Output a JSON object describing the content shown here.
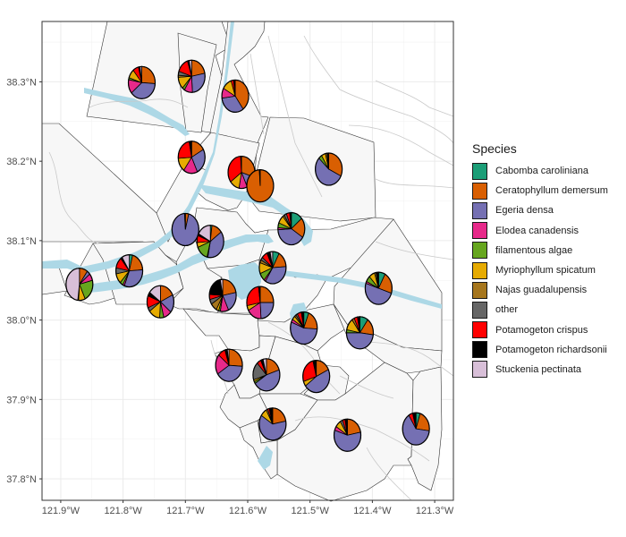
{
  "chart_data": {
    "type": "pie-map",
    "title": "",
    "xlabel": "",
    "ylabel": "",
    "xlim": [
      -121.93,
      -121.27
    ],
    "ylim": [
      37.773,
      38.376
    ],
    "x_ticks": [
      -121.9,
      -121.8,
      -121.7,
      -121.6,
      -121.5,
      -121.4,
      -121.3
    ],
    "x_tick_labels": [
      "121.9°W",
      "121.8°W",
      "121.7°W",
      "121.6°W",
      "121.5°W",
      "121.4°W",
      "121.3°W"
    ],
    "y_ticks": [
      37.8,
      37.9,
      38.0,
      38.1,
      38.2,
      38.3
    ],
    "y_tick_labels": [
      "37.8°N",
      "37.9°N",
      "38.0°N",
      "38.1°N",
      "38.2°N",
      "38.3°N"
    ],
    "grid": true,
    "legend": {
      "title": "Species",
      "position": "right",
      "entries": [
        {
          "name": "Cabomba caroliniana",
          "color": "#1B9E77"
        },
        {
          "name": "Ceratophyllum demersum",
          "color": "#D95F02"
        },
        {
          "name": "Egeria densa",
          "color": "#7570B3"
        },
        {
          "name": "Elodea canadensis",
          "color": "#E7298A"
        },
        {
          "name": "filamentous algae",
          "color": "#66A61E"
        },
        {
          "name": "Myriophyllum spicatum",
          "color": "#E6AB02"
        },
        {
          "name": "Najas guadalupensis",
          "color": "#A6761D"
        },
        {
          "name": "other",
          "color": "#666666"
        },
        {
          "name": "Potamogeton crispus",
          "color": "#FF0000"
        },
        {
          "name": "Potamogeton richardsonii",
          "color": "#000000"
        },
        {
          "name": "Stuckenia pectinata",
          "color": "#D8BFD8"
        }
      ]
    },
    "sites": [
      {
        "lon": -121.77,
        "lat": 38.299,
        "slices": {
          "Ceratophyllum demersum": 0.26,
          "Egeria densa": 0.38,
          "Elodea canadensis": 0.14,
          "filamentous algae": 0.02,
          "Myriophyllum spicatum": 0.09,
          "Potamogeton richardsonii": 0.02,
          "Potamogeton crispus": 0.07,
          "Stuckenia pectinata": 0.02
        }
      },
      {
        "lon": -121.69,
        "lat": 38.307,
        "slices": {
          "Ceratophyllum demersum": 0.22,
          "Egeria densa": 0.27,
          "Elodea canadensis": 0.1,
          "filamentous algae": 0.03,
          "Myriophyllum spicatum": 0.12,
          "Najas guadalupensis": 0.02,
          "Potamogeton richardsonii": 0.02,
          "Potamogeton crispus": 0.15,
          "Stuckenia pectinata": 0.03,
          "other": 0.04
        }
      },
      {
        "lon": -121.62,
        "lat": 38.282,
        "slices": {
          "Ceratophyllum demersum": 0.4,
          "Egeria densa": 0.33,
          "Elodea canadensis": 0.1,
          "Myriophyllum spicatum": 0.12,
          "Potamogeton richardsonii": 0.02,
          "Potamogeton crispus": 0.03
        }
      },
      {
        "lon": -121.69,
        "lat": 38.205,
        "slices": {
          "Ceratophyllum demersum": 0.17,
          "Egeria densa": 0.26,
          "Elodea canadensis": 0.17,
          "Myriophyllum spicatum": 0.14,
          "Potamogeton crispus": 0.23,
          "Potamogeton richardsonii": 0.03
        }
      },
      {
        "lon": -121.61,
        "lat": 38.186,
        "slices": {
          "Ceratophyllum demersum": 0.3,
          "Egeria densa": 0.13,
          "Elodea canadensis": 0.1,
          "Myriophyllum spicatum": 0.12,
          "Potamogeton crispus": 0.34,
          "Potamogeton richardsonii": 0.01
        }
      },
      {
        "lon": -121.58,
        "lat": 38.169,
        "slices": {
          "Ceratophyllum demersum": 0.99,
          "Potamogeton richardsonii": 0.01
        }
      },
      {
        "lon": -121.47,
        "lat": 38.19,
        "slices": {
          "Ceratophyllum demersum": 0.32,
          "Egeria densa": 0.55,
          "filamentous algae": 0.04,
          "Myriophyllum spicatum": 0.05,
          "Potamogeton richardsonii": 0.02,
          "Najas guadalupensis": 0.02
        }
      },
      {
        "lon": -121.7,
        "lat": 38.114,
        "slices": {
          "Ceratophyllum demersum": 0.04,
          "Egeria densa": 0.95,
          "Potamogeton richardsonii": 0.01
        }
      },
      {
        "lon": -121.66,
        "lat": 38.099,
        "slices": {
          "Cabomba caroliniana": 0.02,
          "Ceratophyllum demersum": 0.13,
          "Egeria densa": 0.38,
          "filamentous algae": 0.15,
          "Myriophyllum spicatum": 0.05,
          "Potamogeton crispus": 0.07,
          "Potamogeton richardsonii": 0.02,
          "Elodea canadensis": 0.01,
          "Stuckenia pectinata": 0.17
        }
      },
      {
        "lon": -121.53,
        "lat": 38.115,
        "slices": {
          "Cabomba caroliniana": 0.14,
          "Ceratophyllum demersum": 0.2,
          "Egeria densa": 0.4,
          "filamentous algae": 0.05,
          "Myriophyllum spicatum": 0.08,
          "Najas guadalupensis": 0.02,
          "Potamogeton crispus": 0.04,
          "Potamogeton richardsonii": 0.02,
          "Elodea canadensis": 0.02,
          "other": 0.03
        }
      },
      {
        "lon": -121.87,
        "lat": 38.045,
        "slices": {
          "Ceratophyllum demersum": 0.1,
          "Egeria densa": 0.04,
          "Elodea canadensis": 0.07,
          "filamentous algae": 0.22,
          "Myriophyllum spicatum": 0.08,
          "Potamogeton richardsonii": 0.01,
          "Stuckenia pectinata": 0.48
        }
      },
      {
        "lon": -121.79,
        "lat": 38.062,
        "slices": {
          "Cabomba caroliniana": 0.04,
          "Ceratophyllum demersum": 0.2,
          "Egeria densa": 0.32,
          "filamentous algae": 0.04,
          "Myriophyllum spicatum": 0.1,
          "Potamogeton crispus": 0.11,
          "Potamogeton richardsonii": 0.02,
          "Stuckenia pectinata": 0.09,
          "Elodea canadensis": 0.02,
          "other": 0.06
        }
      },
      {
        "lon": -121.56,
        "lat": 38.066,
        "slices": {
          "Cabomba caroliniana": 0.08,
          "Ceratophyllum demersum": 0.16,
          "Egeria densa": 0.35,
          "filamentous algae": 0.08,
          "Myriophyllum spicatum": 0.11,
          "Potamogeton crispus": 0.07,
          "Potamogeton richardsonii": 0.04,
          "Elodea canadensis": 0.02,
          "Najas guadalupensis": 0.03,
          "other": 0.03,
          "Stuckenia pectinata": 0.03
        }
      },
      {
        "lon": -121.39,
        "lat": 38.04,
        "slices": {
          "Cabomba caroliniana": 0.08,
          "Ceratophyllum demersum": 0.22,
          "Egeria densa": 0.5,
          "filamentous algae": 0.06,
          "Myriophyllum spicatum": 0.07,
          "Potamogeton richardsonii": 0.03,
          "Elodea canadensis": 0.02,
          "Najas guadalupensis": 0.02
        }
      },
      {
        "lon": -121.74,
        "lat": 38.023,
        "slices": {
          "Ceratophyllum demersum": 0.18,
          "Egeria densa": 0.18,
          "Elodea canadensis": 0.1,
          "Myriophyllum spicatum": 0.14,
          "Potamogeton crispus": 0.12,
          "other": 0.04,
          "Potamogeton richardsonii": 0.04,
          "Stuckenia pectinata": 0.15,
          "filamentous algae": 0.05
        }
      },
      {
        "lon": -121.64,
        "lat": 38.031,
        "slices": {
          "Ceratophyllum demersum": 0.22,
          "Egeria densa": 0.21,
          "Elodea canadensis": 0.1,
          "Myriophyllum spicatum": 0.03,
          "Najas guadalupensis": 0.08,
          "other": 0.05,
          "Potamogeton crispus": 0.05,
          "Potamogeton richardsonii": 0.21,
          "Stuckenia pectinata": 0.03,
          "filamentous algae": 0.02
        }
      },
      {
        "lon": -121.58,
        "lat": 38.022,
        "slices": {
          "Ceratophyllum demersum": 0.25,
          "Egeria densa": 0.24,
          "Elodea canadensis": 0.18,
          "Myriophyllum spicatum": 0.05,
          "Potamogeton crispus": 0.26,
          "Potamogeton richardsonii": 0.02
        }
      },
      {
        "lon": -121.51,
        "lat": 37.99,
        "slices": {
          "Cabomba caroliniana": 0.06,
          "Ceratophyllum demersum": 0.2,
          "Egeria densa": 0.55,
          "Elodea canadensis": 0.03,
          "Myriophyllum spicatum": 0.04,
          "Potamogeton crispus": 0.05,
          "Potamogeton richardsonii": 0.03,
          "Najas guadalupensis": 0.02,
          "other": 0.02
        }
      },
      {
        "lon": -121.42,
        "lat": 37.984,
        "slices": {
          "Cabomba caroliniana": 0.1,
          "Ceratophyllum demersum": 0.17,
          "Egeria densa": 0.48,
          "filamentous algae": 0.03,
          "Myriophyllum spicatum": 0.12,
          "Potamogeton crispus": 0.04,
          "Potamogeton richardsonii": 0.03,
          "Najas guadalupensis": 0.03
        }
      },
      {
        "lon": -121.63,
        "lat": 37.943,
        "slices": {
          "Ceratophyllum demersum": 0.26,
          "Egeria densa": 0.4,
          "Elodea canadensis": 0.2,
          "Potamogeton richardsonii": 0.03,
          "Potamogeton crispus": 0.09,
          "Stuckenia pectinata": 0.02
        }
      },
      {
        "lon": -121.57,
        "lat": 37.931,
        "slices": {
          "Ceratophyllum demersum": 0.2,
          "Egeria densa": 0.46,
          "filamentous algae": 0.02,
          "Myriophyllum spicatum": 0.02,
          "other": 0.18,
          "Potamogeton crispus": 0.05,
          "Potamogeton richardsonii": 0.03,
          "Stuckenia pectinata": 0.04
        }
      },
      {
        "lon": -121.49,
        "lat": 37.929,
        "slices": {
          "Ceratophyllum demersum": 0.18,
          "Egeria densa": 0.47,
          "Myriophyllum spicatum": 0.05,
          "Potamogeton crispus": 0.26,
          "Potamogeton richardsonii": 0.04
        }
      },
      {
        "lon": -121.56,
        "lat": 37.869,
        "slices": {
          "Ceratophyllum demersum": 0.22,
          "Egeria densa": 0.62,
          "Myriophyllum spicatum": 0.08,
          "Potamogeton richardsonii": 0.04,
          "Potamogeton crispus": 0.02,
          "Najas guadalupensis": 0.02
        }
      },
      {
        "lon": -121.44,
        "lat": 37.855,
        "slices": {
          "Ceratophyllum demersum": 0.22,
          "Egeria densa": 0.58,
          "Elodea canadensis": 0.04,
          "Myriophyllum spicatum": 0.07,
          "Potamogeton crispus": 0.03,
          "Potamogeton richardsonii": 0.03,
          "other": 0.03
        }
      },
      {
        "lon": -121.33,
        "lat": 37.863,
        "slices": {
          "Cabomba caroliniana": 0.05,
          "Ceratophyllum demersum": 0.22,
          "Egeria densa": 0.64,
          "Potamogeton crispus": 0.05,
          "Potamogeton richardsonii": 0.04
        }
      }
    ]
  }
}
